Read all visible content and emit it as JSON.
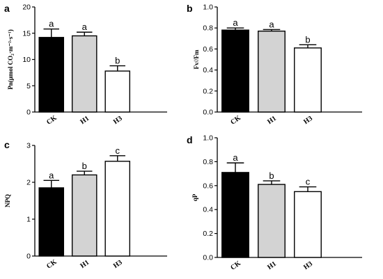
{
  "chart_data": [
    {
      "panel": "a",
      "type": "bar",
      "categories": [
        "CK",
        "H1",
        "H3"
      ],
      "values": [
        14.2,
        14.5,
        7.8
      ],
      "errors": [
        1.6,
        0.7,
        1.0
      ],
      "significance": [
        "a",
        "a",
        "b"
      ],
      "colors": [
        "#000000",
        "#d3d3d3",
        "#ffffff"
      ],
      "ylabel": "Pn(μmol CO₂·m⁻²·s⁻¹)",
      "ylim": [
        0,
        20
      ],
      "yticks": [
        "0",
        "5",
        "10",
        "15",
        "20"
      ],
      "grid": false
    },
    {
      "panel": "b",
      "type": "bar",
      "categories": [
        "CK",
        "H1",
        "H3"
      ],
      "values": [
        0.78,
        0.77,
        0.61
      ],
      "errors": [
        0.02,
        0.015,
        0.03
      ],
      "significance": [
        "a",
        "a",
        "b"
      ],
      "colors": [
        "#000000",
        "#d3d3d3",
        "#ffffff"
      ],
      "ylabel": "Fv//Fm",
      "ylim": [
        0,
        1.0
      ],
      "yticks": [
        "0.0",
        "0.2",
        "0.4",
        "0.6",
        "0.8",
        "1.0"
      ],
      "grid": false
    },
    {
      "panel": "c",
      "type": "bar",
      "categories": [
        "CK",
        "H1",
        "H3"
      ],
      "values": [
        1.85,
        2.2,
        2.57
      ],
      "errors": [
        0.2,
        0.1,
        0.15
      ],
      "significance": [
        "a",
        "b",
        "c"
      ],
      "colors": [
        "#000000",
        "#d3d3d3",
        "#ffffff"
      ],
      "ylabel": "NPQ",
      "ylim": [
        0,
        3
      ],
      "yticks": [
        "0",
        "1",
        "2",
        "3"
      ],
      "grid": false
    },
    {
      "panel": "d",
      "type": "bar",
      "categories": [
        "CK",
        "H1",
        "H3"
      ],
      "values": [
        0.71,
        0.61,
        0.55
      ],
      "errors": [
        0.08,
        0.03,
        0.04
      ],
      "significance": [
        "a",
        "b",
        "c"
      ],
      "colors": [
        "#000000",
        "#d3d3d3",
        "#ffffff"
      ],
      "ylabel": "qP",
      "ylim": [
        0,
        1.0
      ],
      "yticks": [
        "0.0",
        "0.2",
        "0.4",
        "0.6",
        "0.8",
        "1.0"
      ],
      "grid": false
    }
  ]
}
